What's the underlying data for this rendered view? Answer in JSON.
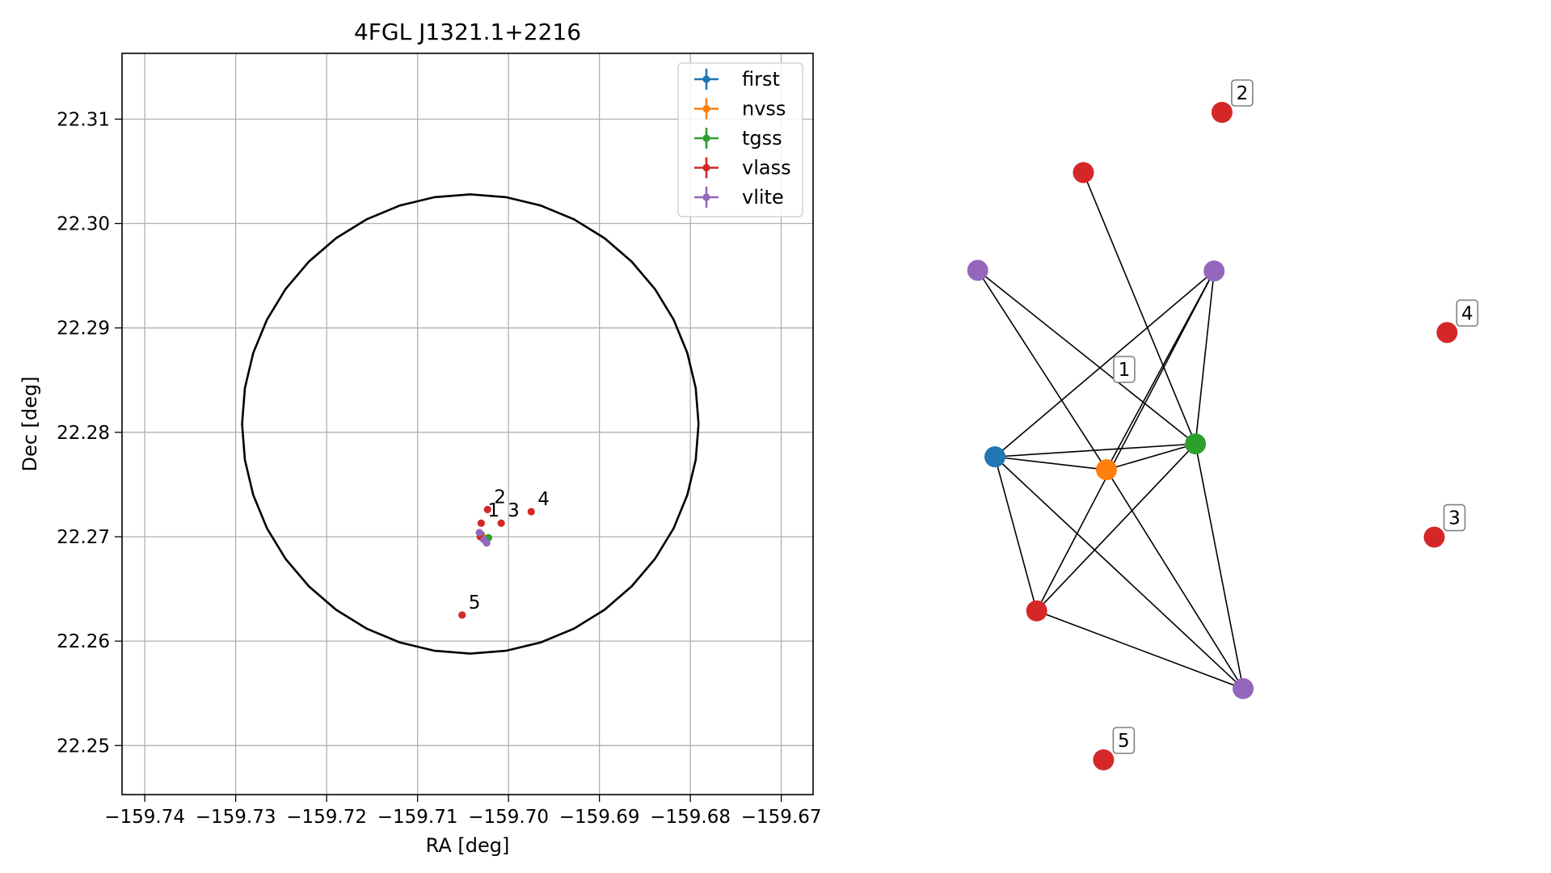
{
  "chart_data": [
    {
      "type": "scatter",
      "title": "4FGL J1321.1+2216",
      "xlabel": "RA [deg]",
      "ylabel": "Dec [deg]",
      "xlim": [
        -159.7425,
        -159.6665
      ],
      "ylim": [
        22.2453,
        22.3163
      ],
      "x_ticks": [
        -159.74,
        -159.73,
        -159.72,
        -159.71,
        -159.7,
        -159.69,
        -159.68,
        -159.67
      ],
      "x_tick_labels": [
        "−159.74",
        "−159.73",
        "−159.72",
        "−159.71",
        "−159.70",
        "−159.69",
        "−159.68",
        "−159.67"
      ],
      "y_ticks": [
        22.25,
        22.26,
        22.27,
        22.28,
        22.29,
        22.3,
        22.31
      ],
      "y_tick_labels": [
        "22.25",
        "22.26",
        "22.27",
        "22.28",
        "22.29",
        "22.30",
        "22.31"
      ],
      "grid": true,
      "legend_position": "top-right",
      "ellipse": {
        "center": [
          -159.7042,
          22.2808
        ],
        "ra_semi_axis": 0.0251,
        "dec_semi_axis": 0.022
      },
      "series": [
        {
          "name": "first",
          "color": "#1f77b4",
          "points": [
            {
              "x": -159.703,
              "y": 22.2702
            }
          ]
        },
        {
          "name": "nvss",
          "color": "#ff7f0e",
          "points": [
            {
              "x": -159.7027,
              "y": 22.2699
            }
          ]
        },
        {
          "name": "tgss",
          "color": "#2ca02c",
          "points": [
            {
              "x": -159.7022,
              "y": 22.2699
            }
          ]
        },
        {
          "name": "vlass",
          "color": "#d62728",
          "points": [
            {
              "x": -159.703,
              "y": 22.2713,
              "label": "1"
            },
            {
              "x": -159.7023,
              "y": 22.2726,
              "label": "2"
            },
            {
              "x": -159.7008,
              "y": 22.2713,
              "label": "3"
            },
            {
              "x": -159.6975,
              "y": 22.2724,
              "label": "4"
            },
            {
              "x": -159.7051,
              "y": 22.2625,
              "label": "5"
            },
            {
              "x": -159.7031,
              "y": 22.27
            }
          ]
        },
        {
          "name": "vlite",
          "color": "#9467bd",
          "points": [
            {
              "x": -159.7032,
              "y": 22.2704
            },
            {
              "x": -159.7024,
              "y": 22.2694
            },
            {
              "x": -159.7027,
              "y": 22.2697
            }
          ]
        }
      ]
    },
    {
      "type": "network",
      "nodes": [
        {
          "id": "first",
          "color": "#1f77b4",
          "gx": 0.0,
          "gy": 0.532
        },
        {
          "id": "nvss",
          "color": "#ff7f0e",
          "gx": 0.227,
          "gy": 0.552
        },
        {
          "id": "tgss",
          "color": "#2ca02c",
          "gx": 0.408,
          "gy": 0.512
        },
        {
          "id": "vlass_a",
          "color": "#d62728",
          "gx": 0.18,
          "gy": 0.093
        },
        {
          "id": "vlass_b",
          "color": "#d62728",
          "gx": 0.085,
          "gy": 0.77
        },
        {
          "id": "vlite_a",
          "color": "#9467bd",
          "gx": -0.035,
          "gy": 0.244
        },
        {
          "id": "vlite_b",
          "color": "#9467bd",
          "gx": 0.446,
          "gy": 0.245
        },
        {
          "id": "vlite_c",
          "color": "#9467bd",
          "gx": 0.505,
          "gy": 0.89
        },
        {
          "id": "v2",
          "color": "#d62728",
          "gx": 0.462,
          "gy": 0.0,
          "label": "2"
        },
        {
          "id": "v4",
          "color": "#d62728",
          "gx": 0.92,
          "gy": 0.34,
          "label": "4"
        },
        {
          "id": "v3",
          "color": "#d62728",
          "gx": 0.894,
          "gy": 0.656,
          "label": "3"
        },
        {
          "id": "v5",
          "color": "#d62728",
          "gx": 0.221,
          "gy": 1.0,
          "label": "5"
        }
      ],
      "edges": [
        [
          "first",
          "nvss"
        ],
        [
          "first",
          "tgss"
        ],
        [
          "first",
          "vlite_b"
        ],
        [
          "first",
          "vlass_b"
        ],
        [
          "first",
          "vlite_c"
        ],
        [
          "nvss",
          "tgss"
        ],
        [
          "nvss",
          "vlite_a"
        ],
        [
          "nvss",
          "vlite_b"
        ],
        [
          "nvss",
          "vlite_c"
        ],
        [
          "tgss",
          "vlass_a"
        ],
        [
          "tgss",
          "vlite_a"
        ],
        [
          "tgss",
          "vlite_b"
        ],
        [
          "tgss",
          "vlass_b"
        ],
        [
          "tgss",
          "vlite_c"
        ],
        [
          "vlass_b",
          "vlite_b"
        ],
        [
          "vlass_b",
          "vlite_c"
        ]
      ],
      "floating_labels": [
        {
          "text": "1",
          "gx": 0.263,
          "gy": 0.397
        }
      ]
    }
  ]
}
